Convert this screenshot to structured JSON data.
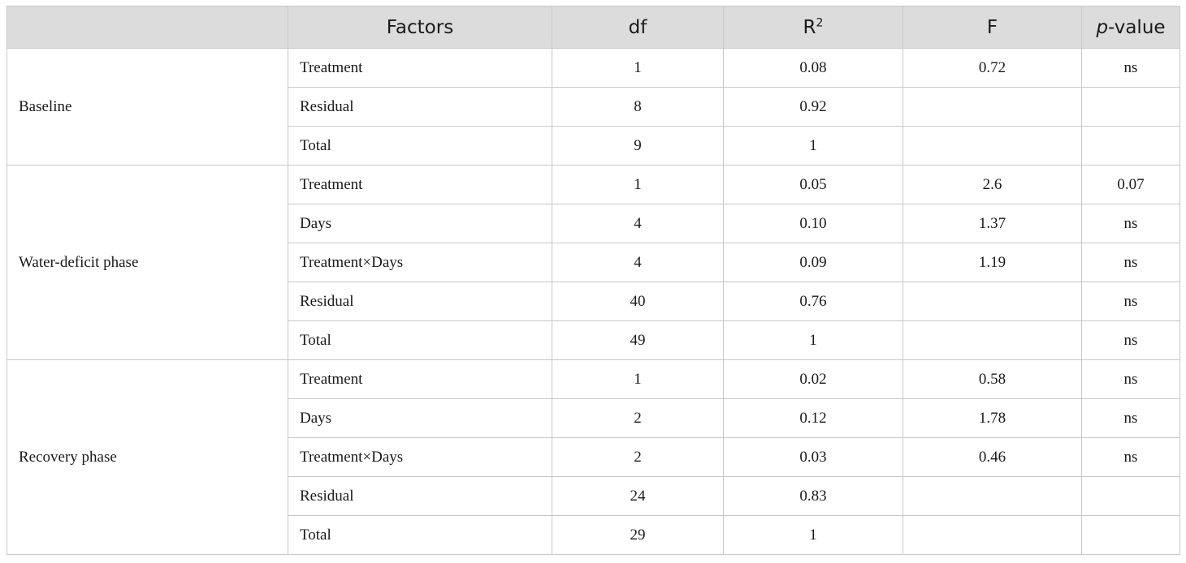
{
  "table": {
    "headers": {
      "group": "",
      "factors": "Factors",
      "df": "df",
      "r2_base": "R",
      "r2_sup": "2",
      "f": "F",
      "p_italic": "p",
      "p_rest": "-value"
    },
    "groups": [
      {
        "label": "Baseline",
        "rows": [
          {
            "factor": "Treatment",
            "df": "1",
            "r2": "0.08",
            "f": "0.72",
            "p": "ns"
          },
          {
            "factor": "Residual",
            "df": "8",
            "r2": "0.92",
            "f": "",
            "p": ""
          },
          {
            "factor": "Total",
            "df": "9",
            "r2": "1",
            "f": "",
            "p": ""
          }
        ]
      },
      {
        "label": "Water-deficit phase",
        "rows": [
          {
            "factor": "Treatment",
            "df": "1",
            "r2": "0.05",
            "f": "2.6",
            "p": "0.07"
          },
          {
            "factor": "Days",
            "df": "4",
            "r2": "0.10",
            "f": "1.37",
            "p": "ns"
          },
          {
            "factor": "Treatment×Days",
            "df": "4",
            "r2": "0.09",
            "f": "1.19",
            "p": "ns"
          },
          {
            "factor": "Residual",
            "df": "40",
            "r2": "0.76",
            "f": "",
            "p": "ns"
          },
          {
            "factor": "Total",
            "df": "49",
            "r2": "1",
            "f": "",
            "p": "ns"
          }
        ]
      },
      {
        "label": "Recovery phase",
        "rows": [
          {
            "factor": "Treatment",
            "df": "1",
            "r2": "0.02",
            "f": "0.58",
            "p": "ns"
          },
          {
            "factor": "Days",
            "df": "2",
            "r2": "0.12",
            "f": "1.78",
            "p": "ns"
          },
          {
            "factor": "Treatment×Days",
            "df": "2",
            "r2": "0.03",
            "f": "0.46",
            "p": "ns"
          },
          {
            "factor": "Residual",
            "df": "24",
            "r2": "0.83",
            "f": "",
            "p": ""
          },
          {
            "factor": "Total",
            "df": "29",
            "r2": "1",
            "f": "",
            "p": ""
          }
        ]
      }
    ]
  }
}
